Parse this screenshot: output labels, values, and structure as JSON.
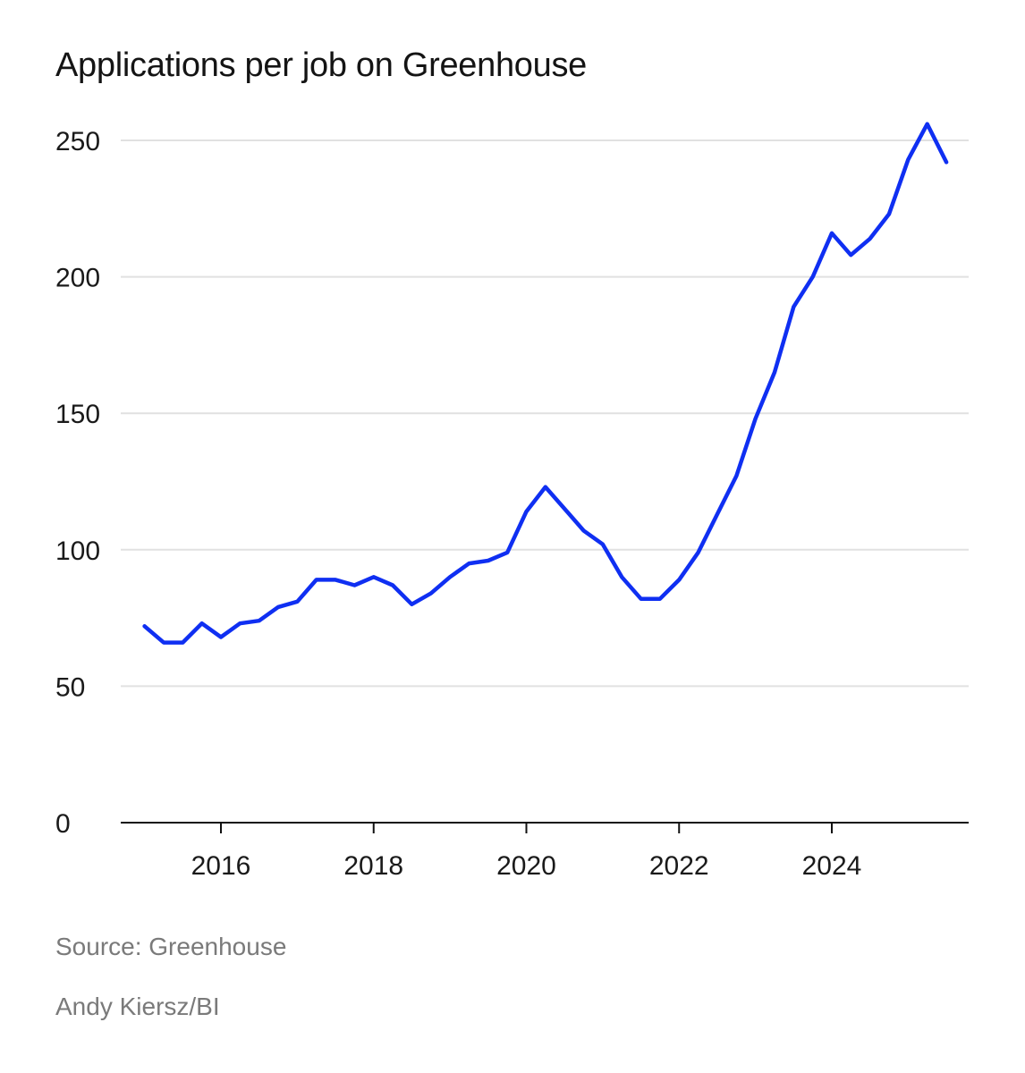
{
  "chart_data": {
    "type": "line",
    "title": "Applications per job on Greenhouse",
    "xlabel": "",
    "ylabel": "",
    "ylim": [
      0,
      250
    ],
    "y_ticks": [
      0,
      50,
      100,
      150,
      200,
      250
    ],
    "x_ticks": [
      2016,
      2018,
      2020,
      2022,
      2024
    ],
    "xlim": [
      2014.9,
      2025.8
    ],
    "grid": true,
    "line_color": "#0f2ff2",
    "series": [
      {
        "name": "Applications per job",
        "x": [
          2015.0,
          2015.25,
          2015.5,
          2015.75,
          2016.0,
          2016.25,
          2016.5,
          2016.75,
          2017.0,
          2017.25,
          2017.5,
          2017.75,
          2018.0,
          2018.25,
          2018.5,
          2018.75,
          2019.0,
          2019.25,
          2019.5,
          2019.75,
          2020.0,
          2020.25,
          2020.5,
          2020.75,
          2021.0,
          2021.25,
          2021.5,
          2021.75,
          2022.0,
          2022.25,
          2022.5,
          2022.75,
          2023.0,
          2023.25,
          2023.5,
          2023.75,
          2024.0,
          2024.25,
          2024.5,
          2024.75,
          2025.0,
          2025.25,
          2025.5
        ],
        "values": [
          72,
          66,
          66,
          73,
          68,
          73,
          74,
          79,
          81,
          89,
          89,
          87,
          90,
          87,
          80,
          84,
          90,
          95,
          96,
          99,
          114,
          123,
          115,
          107,
          102,
          90,
          82,
          82,
          89,
          99,
          113,
          127,
          148,
          165,
          189,
          200,
          216,
          208,
          214,
          223,
          243,
          256,
          242
        ]
      }
    ]
  },
  "footer": {
    "source": "Source: Greenhouse",
    "credit": "Andy Kiersz/BI"
  }
}
